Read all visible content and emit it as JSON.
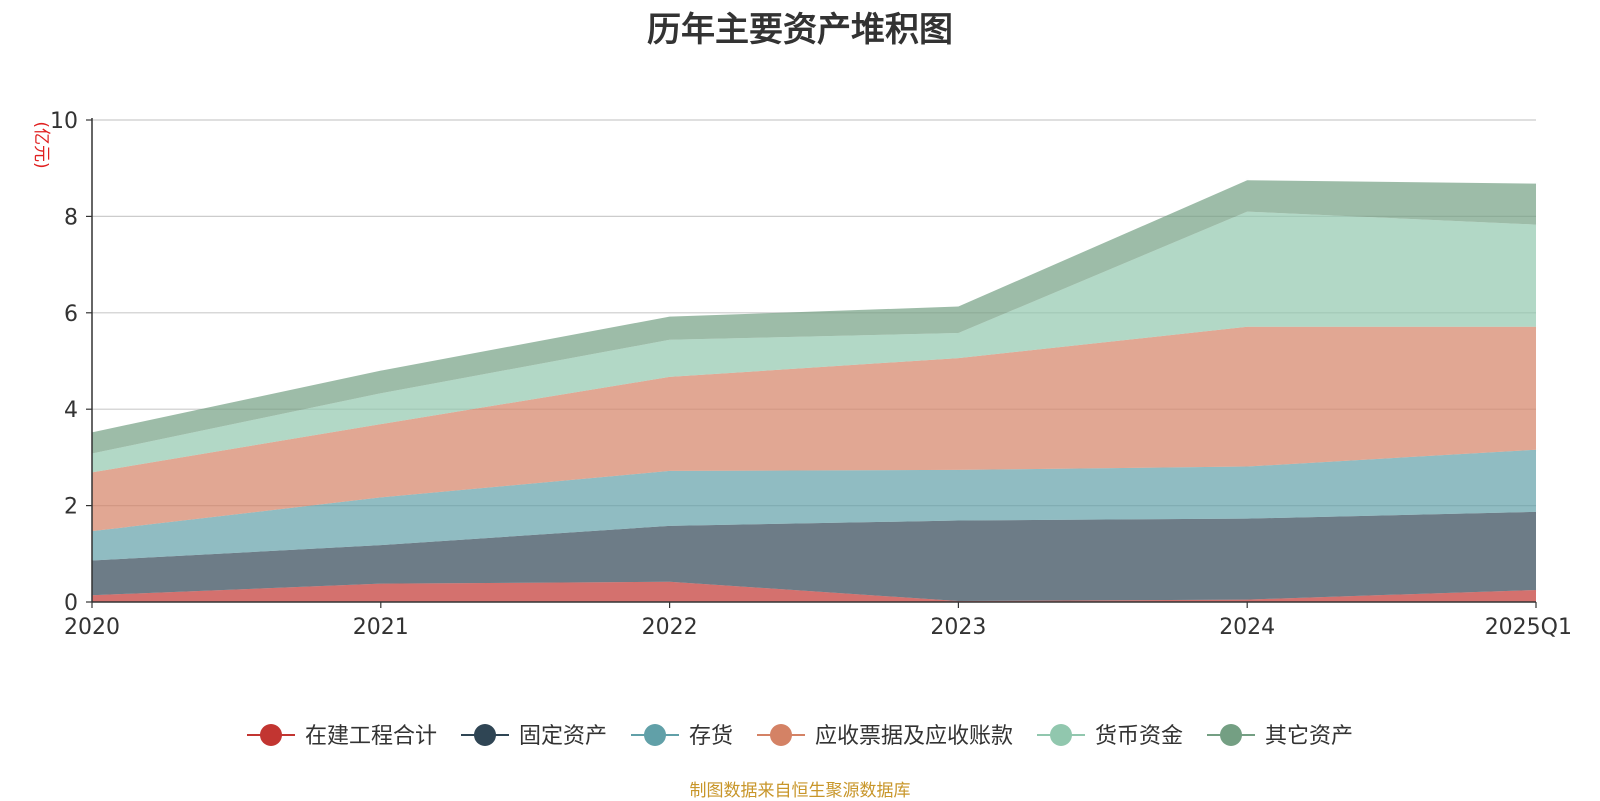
{
  "chart_data": {
    "type": "area",
    "stacked": true,
    "title": "历年主要资产堆积图",
    "ylabel": "(亿元)",
    "ylim": [
      0,
      10
    ],
    "yticks": [
      0,
      2,
      4,
      6,
      8,
      10
    ],
    "categories": [
      "2020",
      "2021",
      "2022",
      "2023",
      "2024",
      "2025Q1"
    ],
    "grid": true,
    "legend_position": "bottom",
    "series": [
      {
        "name": "在建工程合计",
        "color": "#c23531",
        "values": [
          0.14,
          0.38,
          0.42,
          0.02,
          0.05,
          0.25
        ]
      },
      {
        "name": "固定资产",
        "color": "#2f4554",
        "values": [
          0.72,
          0.8,
          1.16,
          1.67,
          1.68,
          1.62
        ]
      },
      {
        "name": "存货",
        "color": "#61a0a8",
        "values": [
          0.61,
          0.99,
          1.14,
          1.05,
          1.08,
          1.29
        ]
      },
      {
        "name": "应收票据及应收账款",
        "color": "#d48265",
        "values": [
          1.22,
          1.52,
          1.95,
          2.32,
          2.9,
          2.55
        ]
      },
      {
        "name": "货币资金",
        "color": "#91c7ae",
        "values": [
          0.39,
          0.64,
          0.77,
          0.52,
          2.39,
          2.12
        ]
      },
      {
        "name": "其它资产",
        "color": "#749f83",
        "values": [
          0.44,
          0.47,
          0.48,
          0.55,
          0.65,
          0.85
        ]
      }
    ],
    "source": "制图数据来自恒生聚源数据库"
  }
}
